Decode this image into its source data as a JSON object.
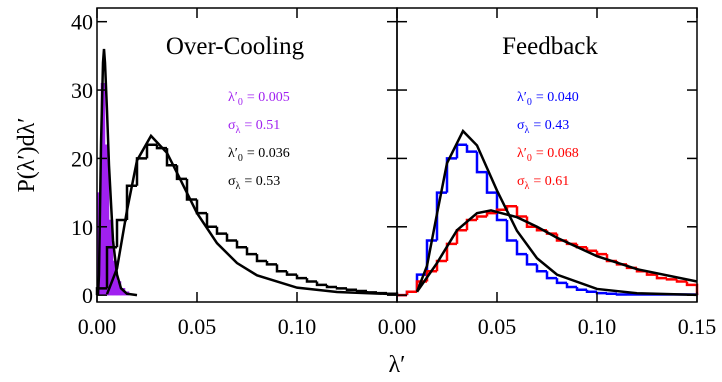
{
  "chart_data": [
    {
      "type": "histogram",
      "title": "Over-Cooling",
      "ylabel": "P(λ′)dλ′",
      "xlabel": "λ′",
      "xlim": [
        0,
        0.15
      ],
      "ylim": [
        -1,
        42
      ],
      "xticks": [
        {
          "value": 0,
          "label": "0.00"
        },
        {
          "value": 0.05,
          "label": "0.05"
        },
        {
          "value": 0.1,
          "label": "0.10"
        }
      ],
      "yticks": [
        0,
        10,
        20,
        30,
        40
      ],
      "histograms": [
        {
          "color": "#a020f0",
          "filled": true,
          "bins": [
            0,
            0.002,
            0.004,
            0.006,
            0.008,
            0.01,
            0.012,
            0.014,
            0.016
          ],
          "values": [
            15,
            31,
            22,
            11,
            5,
            2,
            1,
            0.5
          ]
        },
        {
          "color": "#000000",
          "filled": false,
          "bins": [
            0,
            0.005,
            0.01,
            0.015,
            0.02,
            0.025,
            0.03,
            0.035,
            0.04,
            0.045,
            0.05,
            0.055,
            0.06,
            0.065,
            0.07,
            0.075,
            0.08,
            0.085,
            0.09,
            0.095,
            0.1,
            0.105,
            0.11,
            0.115,
            0.12,
            0.125,
            0.13,
            0.135,
            0.14,
            0.145,
            0.15
          ],
          "values": [
            1,
            7,
            11,
            16,
            20,
            22,
            21.5,
            19,
            17,
            14,
            12,
            10,
            9,
            8,
            7,
            6,
            5,
            4.5,
            3.5,
            3,
            2.5,
            2,
            1.5,
            1.2,
            1,
            0.8,
            0.6,
            0.4,
            0.3,
            0.2
          ]
        }
      ],
      "curves": [
        {
          "color": "#000000",
          "x": [
            0.0005,
            0.001,
            0.002,
            0.003,
            0.0035,
            0.004,
            0.005,
            0.006,
            0.008,
            0.01,
            0.012,
            0.015,
            0.02
          ],
          "values": [
            0,
            3,
            22,
            34,
            36,
            34,
            27,
            19,
            8,
            3,
            1,
            0.2,
            0
          ]
        },
        {
          "color": "#000000",
          "x": [
            0.005,
            0.01,
            0.015,
            0.02,
            0.027,
            0.035,
            0.04,
            0.05,
            0.06,
            0.07,
            0.08,
            0.1,
            0.12,
            0.15
          ],
          "values": [
            0.14,
            3.9,
            12.4,
            19.7,
            23.3,
            20.8,
            17.9,
            12,
            7.6,
            4.7,
            2.9,
            1.1,
            0.46,
            0.13
          ]
        }
      ],
      "annotations": [
        {
          "base": "λ′",
          "sub": "0",
          "rest": "= 0.005",
          "color": "#a020f0"
        },
        {
          "base": "σ",
          "sub": "λ",
          "rest": "= 0.51",
          "color": "#a020f0"
        },
        {
          "base": "λ′",
          "sub": "0",
          "rest": "= 0.036",
          "color": "#000000"
        },
        {
          "base": "σ",
          "sub": "λ",
          "rest": "= 0.53",
          "color": "#000000"
        }
      ]
    },
    {
      "type": "histogram",
      "title": "Feedback",
      "xlim": [
        0,
        0.15
      ],
      "ylim": [
        -1,
        42
      ],
      "xticks": [
        {
          "value": 0,
          "label": "0.00"
        },
        {
          "value": 0.05,
          "label": "0.05"
        },
        {
          "value": 0.1,
          "label": "0.10"
        },
        {
          "value": 0.15,
          "label": "0.15"
        }
      ],
      "yticks": [
        0,
        10,
        20,
        30,
        40
      ],
      "histograms": [
        {
          "color": "#0000ff",
          "filled": false,
          "bins": [
            0,
            0.005,
            0.01,
            0.015,
            0.02,
            0.025,
            0.03,
            0.035,
            0.04,
            0.045,
            0.05,
            0.055,
            0.06,
            0.065,
            0.07,
            0.075,
            0.08,
            0.085,
            0.09,
            0.095,
            0.1,
            0.105,
            0.11,
            0.115,
            0.12,
            0.125,
            0.13,
            0.135,
            0.14,
            0.145,
            0.15
          ],
          "values": [
            0,
            0.5,
            3,
            8,
            15,
            20,
            22,
            21,
            18,
            15,
            11,
            8,
            6,
            4.5,
            3.5,
            2.5,
            1.8,
            1.2,
            0.8,
            0.5,
            0.3,
            0.2,
            0.1,
            0.1,
            0.1,
            0.1,
            0.1,
            0.1,
            0.1,
            0.1
          ]
        },
        {
          "color": "#ff0000",
          "filled": false,
          "bins": [
            0,
            0.005,
            0.01,
            0.015,
            0.02,
            0.025,
            0.03,
            0.035,
            0.04,
            0.045,
            0.05,
            0.055,
            0.06,
            0.065,
            0.07,
            0.075,
            0.08,
            0.085,
            0.09,
            0.095,
            0.1,
            0.105,
            0.11,
            0.115,
            0.12,
            0.125,
            0.13,
            0.135,
            0.14,
            0.145,
            0.15
          ],
          "values": [
            0,
            0.5,
            2,
            3.5,
            5,
            7.5,
            9.5,
            11,
            11.5,
            12,
            12.5,
            13,
            11.5,
            10,
            9.5,
            9,
            8,
            7.5,
            7,
            6.5,
            6,
            5,
            4.5,
            4,
            3.5,
            3,
            2.5,
            2.3,
            2,
            1.5
          ]
        }
      ],
      "curves": [
        {
          "color": "#000000",
          "x": [
            0.01,
            0.015,
            0.02,
            0.025,
            0.033,
            0.04,
            0.05,
            0.06,
            0.07,
            0.08,
            0.1,
            0.12,
            0.15
          ],
          "values": [
            0.49,
            4.3,
            11.9,
            19.3,
            24,
            21.9,
            15.3,
            9.4,
            5.4,
            3,
            0.91,
            0.28,
            0.05
          ]
        },
        {
          "color": "#000000",
          "x": [
            0.01,
            0.02,
            0.03,
            0.04,
            0.047,
            0.06,
            0.07,
            0.08,
            0.1,
            0.12,
            0.15
          ],
          "values": [
            0.5,
            4.7,
            9.5,
            12,
            12.4,
            11.4,
            10,
            8.4,
            5.7,
            3.8,
            2
          ]
        }
      ],
      "annotations": [
        {
          "base": "λ′",
          "sub": "0",
          "rest": "= 0.040",
          "color": "#0000ff"
        },
        {
          "base": "σ",
          "sub": "λ",
          "rest": "= 0.43",
          "color": "#0000ff"
        },
        {
          "base": "λ′",
          "sub": "0",
          "rest": "= 0.068",
          "color": "#ff0000"
        },
        {
          "base": "σ",
          "sub": "λ",
          "rest": "= 0.61",
          "color": "#ff0000"
        }
      ]
    }
  ]
}
